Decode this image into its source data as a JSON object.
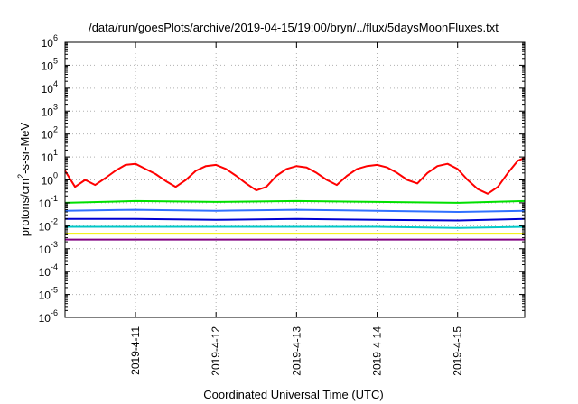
{
  "chart_data": {
    "type": "line",
    "title": "/data/run/goesPlots/archive/2019-04-15/19:00/bryn/../flux/5daysMoonFluxes.txt",
    "xlabel": "Coordinated Universal Time (UTC)",
    "ylabel": {
      "base": "protons/cm",
      "exp": "2",
      "rest": "-s-sr-MeV"
    },
    "yscale": "log",
    "ylim": [
      1e-06,
      1000000.0
    ],
    "y_ticks": [
      {
        "base": "10",
        "exp": "-6",
        "value": -6
      },
      {
        "base": "10",
        "exp": "-5",
        "value": -5
      },
      {
        "base": "10",
        "exp": "-4",
        "value": -4
      },
      {
        "base": "10",
        "exp": "-3",
        "value": -3
      },
      {
        "base": "10",
        "exp": "-2",
        "value": -2
      },
      {
        "base": "10",
        "exp": "-1",
        "value": -1
      },
      {
        "base": "10",
        "exp": "0",
        "value": 0
      },
      {
        "base": "10",
        "exp": "1",
        "value": 1
      },
      {
        "base": "10",
        "exp": "2",
        "value": 2
      },
      {
        "base": "10",
        "exp": "3",
        "value": 3
      },
      {
        "base": "10",
        "exp": "4",
        "value": 4
      },
      {
        "base": "10",
        "exp": "5",
        "value": 5
      },
      {
        "base": "10",
        "exp": "6",
        "value": 6
      }
    ],
    "xlim": [
      "2019-04-10 03:00",
      "2019-04-15 20:00"
    ],
    "x_ticks": [
      "2019-4-11",
      "2019-4-12",
      "2019-4-13",
      "2019-4-14",
      "2019-4-15"
    ],
    "grid": true,
    "legend": "none",
    "series": [
      {
        "color": "#ff0000",
        "x": [
          "2019-04-10 03:00",
          "2019-04-10 06:00",
          "2019-04-10 09:00",
          "2019-04-10 12:00",
          "2019-04-10 15:00",
          "2019-04-10 18:00",
          "2019-04-10 21:00",
          "2019-04-11 00:00",
          "2019-04-11 03:00",
          "2019-04-11 06:00",
          "2019-04-11 09:00",
          "2019-04-11 12:00",
          "2019-04-11 15:00",
          "2019-04-11 18:00",
          "2019-04-11 21:00",
          "2019-04-12 00:00",
          "2019-04-12 03:00",
          "2019-04-12 06:00",
          "2019-04-12 09:00",
          "2019-04-12 12:00",
          "2019-04-12 15:00",
          "2019-04-12 18:00",
          "2019-04-12 21:00",
          "2019-04-13 00:00",
          "2019-04-13 03:00",
          "2019-04-13 06:00",
          "2019-04-13 09:00",
          "2019-04-13 12:00",
          "2019-04-13 15:00",
          "2019-04-13 18:00",
          "2019-04-13 21:00",
          "2019-04-14 00:00",
          "2019-04-14 03:00",
          "2019-04-14 06:00",
          "2019-04-14 09:00",
          "2019-04-14 12:00",
          "2019-04-14 15:00",
          "2019-04-14 18:00",
          "2019-04-14 21:00",
          "2019-04-15 00:00",
          "2019-04-15 03:00",
          "2019-04-15 06:00",
          "2019-04-15 09:00",
          "2019-04-15 12:00",
          "2019-04-15 15:00",
          "2019-04-15 18:00",
          "2019-04-15 20:00"
        ],
        "y": [
          2.5,
          0.5,
          1.0,
          0.6,
          1.2,
          2.5,
          4.5,
          5.0,
          3.0,
          1.8,
          0.9,
          0.5,
          1.0,
          2.5,
          4.0,
          4.5,
          3.0,
          1.5,
          0.7,
          0.35,
          0.5,
          1.5,
          3.0,
          4.0,
          3.5,
          2.0,
          1.0,
          0.6,
          1.5,
          3.0,
          4.0,
          4.5,
          3.5,
          2.0,
          1.0,
          0.7,
          2.0,
          4.0,
          5.0,
          3.0,
          1.0,
          0.4,
          0.25,
          0.5,
          2.0,
          7.0,
          9.0
        ]
      },
      {
        "color": "#00e000",
        "x": [
          "2019-04-10 03:00",
          "2019-04-11 00:00",
          "2019-04-12 00:00",
          "2019-04-13 00:00",
          "2019-04-14 00:00",
          "2019-04-15 00:00",
          "2019-04-15 20:00"
        ],
        "y": [
          0.1,
          0.12,
          0.11,
          0.12,
          0.11,
          0.1,
          0.12
        ]
      },
      {
        "color": "#3070ff",
        "x": [
          "2019-04-10 03:00",
          "2019-04-11 00:00",
          "2019-04-12 00:00",
          "2019-04-13 00:00",
          "2019-04-14 00:00",
          "2019-04-15 00:00",
          "2019-04-15 20:00"
        ],
        "y": [
          0.045,
          0.05,
          0.045,
          0.05,
          0.045,
          0.04,
          0.045
        ]
      },
      {
        "color": "#0000d0",
        "x": [
          "2019-04-10 03:00",
          "2019-04-11 00:00",
          "2019-04-12 00:00",
          "2019-04-13 00:00",
          "2019-04-14 00:00",
          "2019-04-15 00:00",
          "2019-04-15 20:00"
        ],
        "y": [
          0.02,
          0.02,
          0.018,
          0.02,
          0.018,
          0.017,
          0.02
        ]
      },
      {
        "color": "#00c8c8",
        "x": [
          "2019-04-10 03:00",
          "2019-04-11 00:00",
          "2019-04-12 00:00",
          "2019-04-13 00:00",
          "2019-04-14 00:00",
          "2019-04-15 00:00",
          "2019-04-15 20:00"
        ],
        "y": [
          0.009,
          0.009,
          0.009,
          0.009,
          0.009,
          0.008,
          0.009
        ]
      },
      {
        "color": "#f0f000",
        "x": [
          "2019-04-10 03:00",
          "2019-04-11 00:00",
          "2019-04-12 00:00",
          "2019-04-13 00:00",
          "2019-04-14 00:00",
          "2019-04-15 00:00",
          "2019-04-15 20:00"
        ],
        "y": [
          0.0045,
          0.0045,
          0.0045,
          0.0045,
          0.0045,
          0.0045,
          0.0045
        ]
      },
      {
        "color": "#800080",
        "x": [
          "2019-04-10 03:00",
          "2019-04-11 00:00",
          "2019-04-12 00:00",
          "2019-04-13 00:00",
          "2019-04-14 00:00",
          "2019-04-15 00:00",
          "2019-04-15 20:00"
        ],
        "y": [
          0.0025,
          0.0025,
          0.0025,
          0.0025,
          0.0025,
          0.0025,
          0.0025
        ]
      }
    ]
  }
}
